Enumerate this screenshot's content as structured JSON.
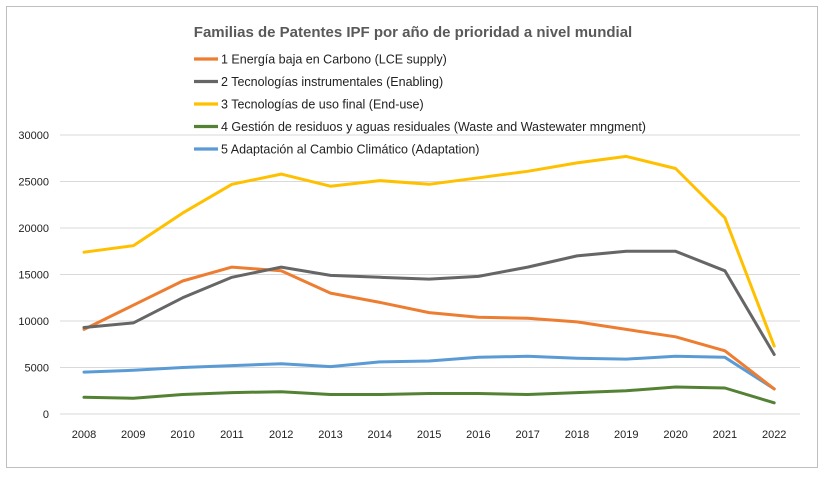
{
  "chart_data": {
    "type": "line",
    "title": "Familias de Patentes IPF por año de prioridad a nivel mundial",
    "xlabel": "",
    "ylabel": "",
    "ylim": [
      0,
      30000
    ],
    "yticks": [
      "0",
      "5000",
      "10000",
      "15000",
      "20000",
      "25000",
      "30000"
    ],
    "grid": true,
    "legend_placement": "top",
    "x": [
      "2008",
      "2009",
      "2010",
      "2011",
      "2012",
      "2013",
      "2014",
      "2015",
      "2016",
      "2017",
      "2018",
      "2019",
      "2020",
      "2021",
      "2022"
    ],
    "series": [
      {
        "name": "1 Energía baja en Carbono (LCE supply)",
        "color": "#ED7D31",
        "values": [
          9100,
          11700,
          14300,
          15800,
          15400,
          13000,
          12000,
          10900,
          10400,
          10300,
          9900,
          9100,
          8300,
          6800,
          2700
        ]
      },
      {
        "name": "2 Tecnologías instrumentales (Enabling)",
        "color": "#666666",
        "values": [
          9300,
          9800,
          12500,
          14700,
          15800,
          14900,
          14700,
          14500,
          14800,
          15800,
          17000,
          17500,
          17500,
          15400,
          6400
        ]
      },
      {
        "name": "3 Tecnologías de uso final (End-use)",
        "color": "#FFC000",
        "values": [
          17400,
          18100,
          21600,
          24700,
          25800,
          24500,
          25100,
          24700,
          25400,
          26100,
          27000,
          27700,
          26400,
          21100,
          7300
        ]
      },
      {
        "name": "4 Gestión de residuos y aguas residuales (Waste and Wastewater mngment)",
        "color": "#548235",
        "values": [
          1800,
          1700,
          2100,
          2300,
          2400,
          2100,
          2100,
          2200,
          2200,
          2100,
          2300,
          2500,
          2900,
          2800,
          1200
        ]
      },
      {
        "name": "5 Adaptación al Cambio Climático (Adaptation)",
        "color": "#5B9BD5",
        "values": [
          4500,
          4700,
          5000,
          5200,
          5400,
          5100,
          5600,
          5700,
          6100,
          6200,
          6000,
          5900,
          6200,
          6100,
          2700
        ]
      }
    ]
  }
}
